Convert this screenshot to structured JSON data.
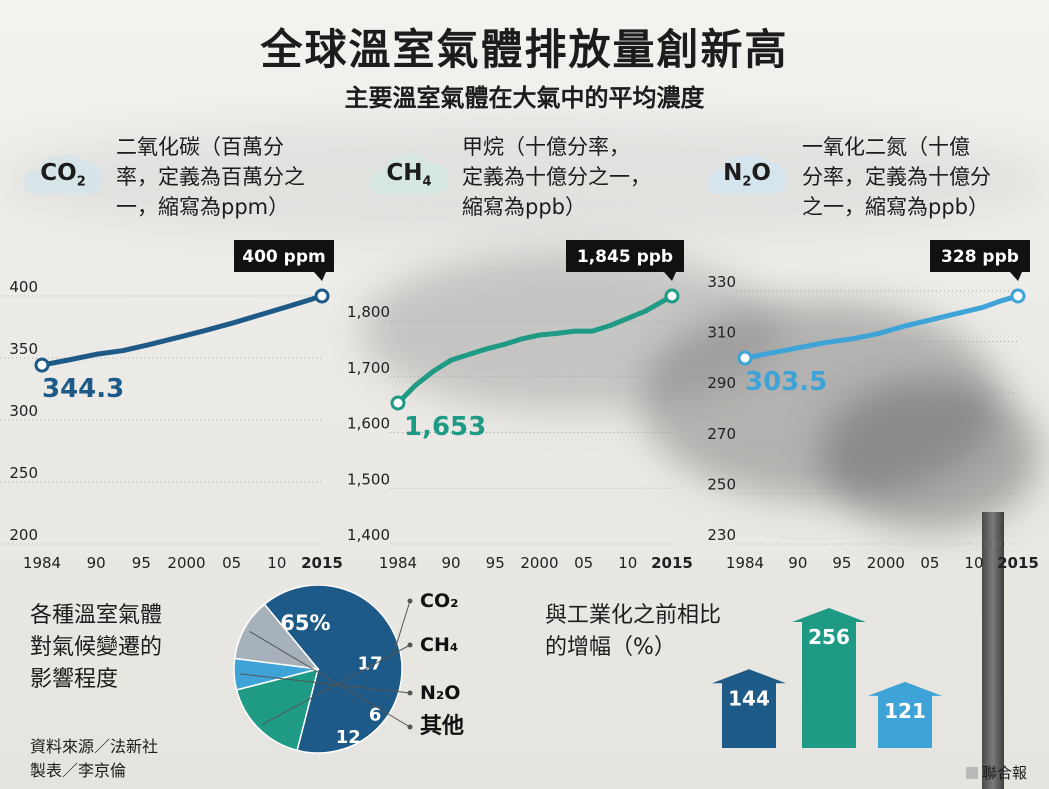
{
  "header": {
    "title": "全球溫室氣體排放量創新高",
    "subtitle": "主要溫室氣體在大氣中的平均濃度"
  },
  "chart_data": [
    {
      "type": "line",
      "gas": "CO₂",
      "description": "二氧化碳（百萬分\n率，定義為百萬分之\n一，縮寫為ppm）",
      "x": [
        1984,
        1987,
        1990,
        1993,
        1996,
        1999,
        2002,
        2005,
        2008,
        2011,
        2013,
        2015
      ],
      "y": [
        344.3,
        348.5,
        353.0,
        356.0,
        361.0,
        366.5,
        372.0,
        378.0,
        384.5,
        391.0,
        395.5,
        400
      ],
      "xticks": [
        "1984",
        "90",
        "95",
        "2000",
        "05",
        "10",
        "2015"
      ],
      "xtick_values": [
        1984,
        1990,
        1995,
        2000,
        2005,
        2010,
        2015
      ],
      "yticks": [
        200,
        250,
        300,
        350,
        400
      ],
      "ylim": [
        200,
        400
      ],
      "start_label": "344.3",
      "end_label": "400 ppm",
      "color": "#1d5a87"
    },
    {
      "type": "line",
      "gas": "CH₄",
      "description": "甲烷（十億分率，\n定義為十億分之一，\n縮寫為ppb）",
      "x": [
        1984,
        1986,
        1988,
        1990,
        1992,
        1994,
        1996,
        1998,
        2000,
        2002,
        2004,
        2006,
        2008,
        2010,
        2012,
        2015
      ],
      "y": [
        1653,
        1685,
        1710,
        1730,
        1740,
        1750,
        1758,
        1768,
        1775,
        1778,
        1782,
        1782,
        1792,
        1805,
        1818,
        1845
      ],
      "xticks": [
        "1984",
        "90",
        "95",
        "2000",
        "05",
        "10",
        "2015"
      ],
      "xtick_values": [
        1984,
        1990,
        1995,
        2000,
        2005,
        2010,
        2015
      ],
      "yticks": [
        1400,
        1500,
        1600,
        1700,
        1800
      ],
      "ytick_labels": [
        "1,400",
        "1,500",
        "1,600",
        "1,700",
        "1,800"
      ],
      "ylim": [
        1400,
        1845
      ],
      "start_label": "1,653",
      "end_label": "1,845 ppb",
      "color": "#1f9a85"
    },
    {
      "type": "line",
      "gas": "N₂O",
      "description": "一氧化二氮（十億\n分率，定義為十億分\n之一，縮寫為ppb）",
      "x": [
        1984,
        1987,
        1990,
        1993,
        1996,
        1999,
        2002,
        2005,
        2008,
        2011,
        2013,
        2015
      ],
      "y": [
        303.5,
        305.5,
        307.5,
        309.5,
        311.0,
        313.0,
        316.0,
        318.5,
        321.0,
        323.5,
        326.0,
        328
      ],
      "xticks": [
        "1984",
        "90",
        "95",
        "2000",
        "05",
        "10",
        "2015"
      ],
      "xtick_values": [
        1984,
        1990,
        1995,
        2000,
        2005,
        2010,
        2015
      ],
      "yticks": [
        230,
        250,
        270,
        290,
        310,
        330
      ],
      "ylim": [
        230,
        328
      ],
      "start_label": "303.5",
      "end_label": "328 ppb",
      "color": "#3ea3d6"
    },
    {
      "type": "pie",
      "title": "各種溫室氣體\n對氣候變遷的\n影響程度",
      "slices": [
        {
          "name": "CO₂",
          "value": 65,
          "label": "65%",
          "color": "#1d5a87"
        },
        {
          "name": "CH₄",
          "value": 17,
          "label": "17",
          "color": "#1f9a85"
        },
        {
          "name": "N₂O",
          "value": 6,
          "label": "6",
          "color": "#3ea3d6"
        },
        {
          "name": "其他",
          "value": 12,
          "label": "12",
          "color": "#a7b1ba"
        }
      ]
    },
    {
      "type": "bar",
      "title": "與工業化之前相比\n的增幅（%）",
      "categories": [
        "CO₂",
        "CH₄",
        "N₂O"
      ],
      "values": [
        144,
        256,
        121
      ],
      "colors": [
        "#1d5a87",
        "#1f9a85",
        "#3ea3d6"
      ]
    }
  ],
  "footer": {
    "source": "資料來源／法新社\n製表／李京倫",
    "credit": "聯合報"
  }
}
